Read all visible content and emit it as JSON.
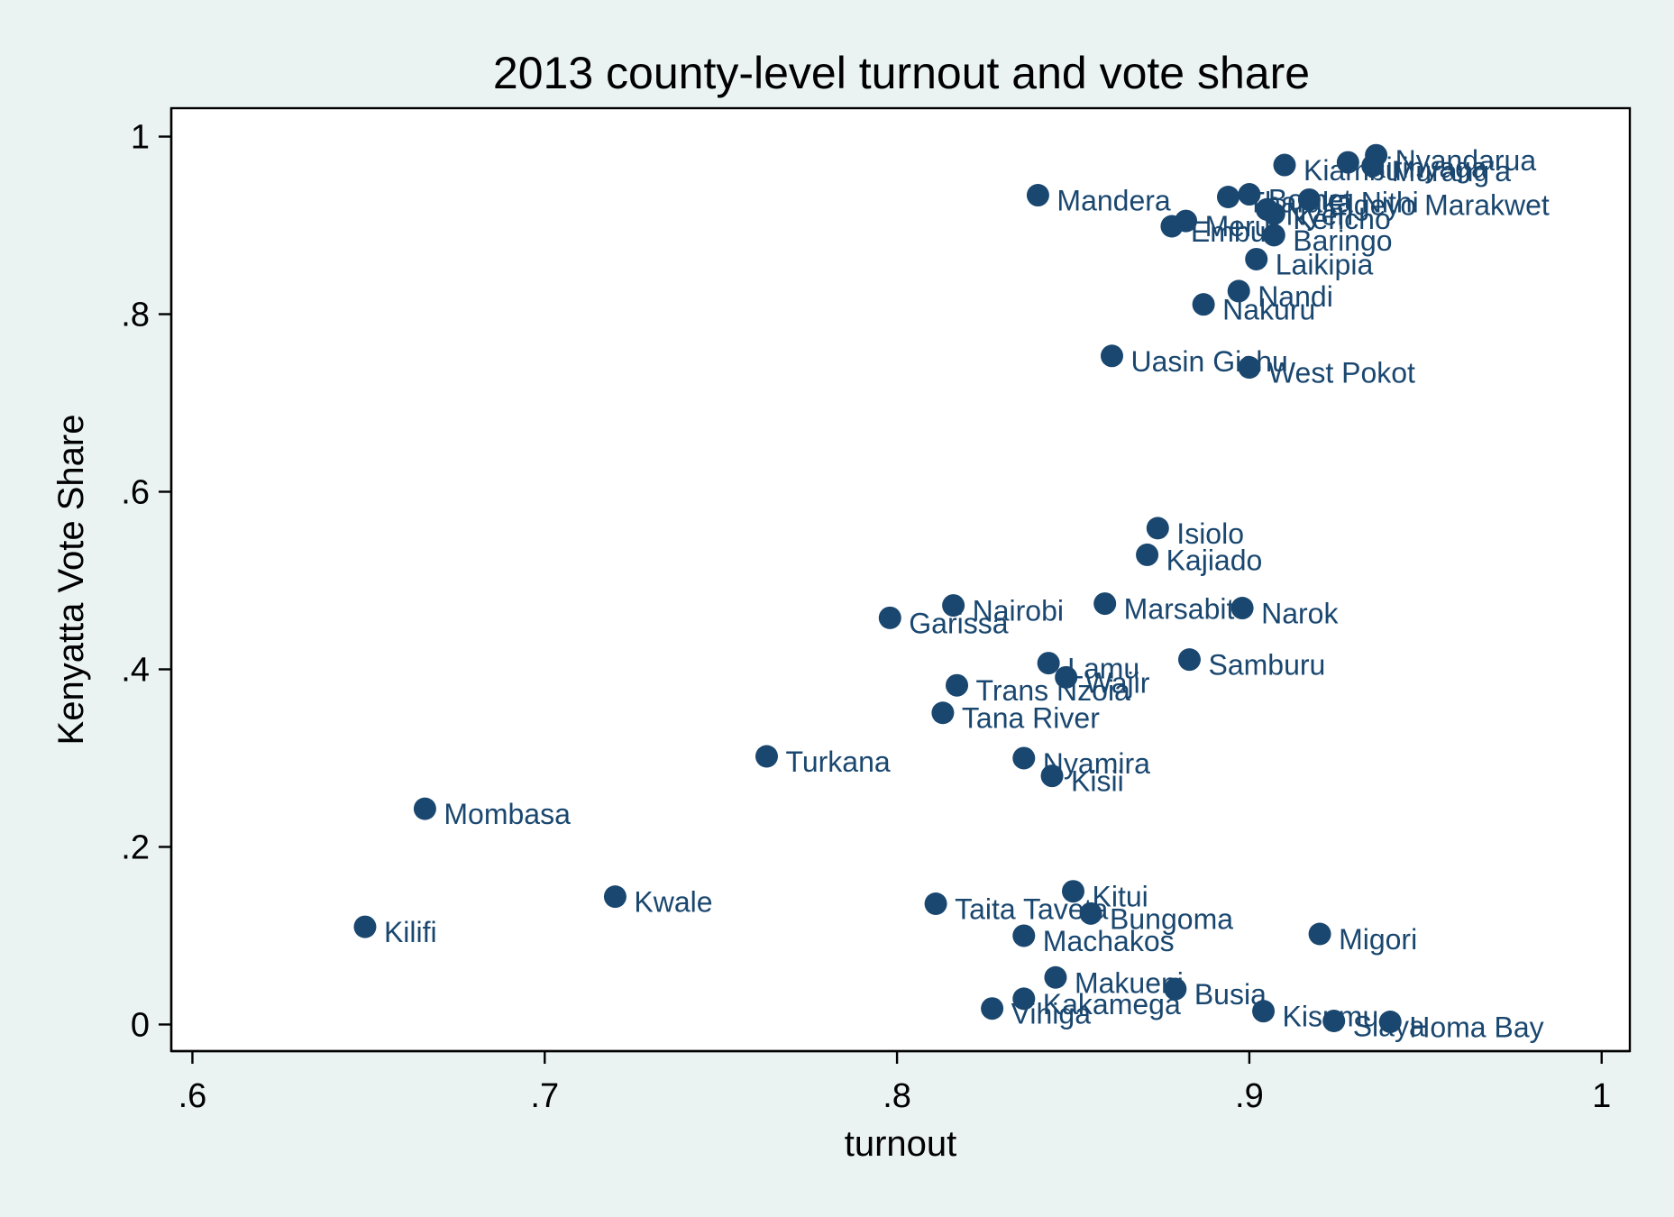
{
  "chart_data": {
    "type": "scatter",
    "title": "2013 county-level turnout and vote share",
    "xlabel": "turnout",
    "ylabel": "Kenyatta Vote Share",
    "xlim": [
      0.594,
      1.008
    ],
    "ylim": [
      -0.03,
      1.032
    ],
    "x_ticks": [
      0.6,
      0.7,
      0.8,
      0.9,
      1.0
    ],
    "x_tick_labels": [
      ".6",
      ".7",
      ".8",
      ".9",
      "1"
    ],
    "y_ticks": [
      0,
      0.2,
      0.4,
      0.6,
      0.8,
      1.0
    ],
    "y_tick_labels": [
      "0",
      ".2",
      ".4",
      ".6",
      ".8",
      "1"
    ],
    "grid": false,
    "marker_color": "#1a476f",
    "points": [
      {
        "label": "Nyandarua",
        "x": 0.936,
        "y": 0.979
      },
      {
        "label": "Kirinyaga",
        "x": 0.928,
        "y": 0.971
      },
      {
        "label": "Murang'a",
        "x": 0.935,
        "y": 0.967
      },
      {
        "label": "Kiambu",
        "x": 0.91,
        "y": 0.968
      },
      {
        "label": "Mandera",
        "x": 0.84,
        "y": 0.934
      },
      {
        "label": "Tharaka Nithi",
        "x": 0.894,
        "y": 0.932
      },
      {
        "label": "Bomet",
        "x": 0.9,
        "y": 0.935
      },
      {
        "label": "Elgeyo Marakwet",
        "x": 0.917,
        "y": 0.929
      },
      {
        "label": "Nyeri",
        "x": 0.905,
        "y": 0.918
      },
      {
        "label": "Kericho",
        "x": 0.907,
        "y": 0.913
      },
      {
        "label": "Meru",
        "x": 0.882,
        "y": 0.905
      },
      {
        "label": "Embu",
        "x": 0.878,
        "y": 0.899
      },
      {
        "label": "Baringo",
        "x": 0.907,
        "y": 0.889
      },
      {
        "label": "Laikipia",
        "x": 0.902,
        "y": 0.862
      },
      {
        "label": "Nandi",
        "x": 0.897,
        "y": 0.826
      },
      {
        "label": "Nakuru",
        "x": 0.887,
        "y": 0.811
      },
      {
        "label": "Uasin Gishu",
        "x": 0.861,
        "y": 0.753
      },
      {
        "label": "West Pokot",
        "x": 0.9,
        "y": 0.74
      },
      {
        "label": "Isiolo",
        "x": 0.874,
        "y": 0.559
      },
      {
        "label": "Kajiado",
        "x": 0.871,
        "y": 0.529
      },
      {
        "label": "Nairobi",
        "x": 0.816,
        "y": 0.472
      },
      {
        "label": "Marsabit",
        "x": 0.859,
        "y": 0.474
      },
      {
        "label": "Narok",
        "x": 0.898,
        "y": 0.469
      },
      {
        "label": "Garissa",
        "x": 0.798,
        "y": 0.458
      },
      {
        "label": "Samburu",
        "x": 0.883,
        "y": 0.411
      },
      {
        "label": "Lamu",
        "x": 0.843,
        "y": 0.407
      },
      {
        "label": "Wajir",
        "x": 0.848,
        "y": 0.391
      },
      {
        "label": "Trans Nzoia",
        "x": 0.817,
        "y": 0.382
      },
      {
        "label": "Tana River",
        "x": 0.813,
        "y": 0.351
      },
      {
        "label": "Turkana",
        "x": 0.763,
        "y": 0.302
      },
      {
        "label": "Nyamira",
        "x": 0.836,
        "y": 0.3
      },
      {
        "label": "Kisii",
        "x": 0.844,
        "y": 0.28
      },
      {
        "label": "Mombasa",
        "x": 0.666,
        "y": 0.243
      },
      {
        "label": "Kwale",
        "x": 0.72,
        "y": 0.144
      },
      {
        "label": "Kitui",
        "x": 0.85,
        "y": 0.15
      },
      {
        "label": "Taita Taveta",
        "x": 0.811,
        "y": 0.136
      },
      {
        "label": "Bungoma",
        "x": 0.855,
        "y": 0.125
      },
      {
        "label": "Kilifi",
        "x": 0.649,
        "y": 0.11
      },
      {
        "label": "Machakos",
        "x": 0.836,
        "y": 0.1
      },
      {
        "label": "Migori",
        "x": 0.92,
        "y": 0.102
      },
      {
        "label": "Makueni",
        "x": 0.845,
        "y": 0.053
      },
      {
        "label": "Busia",
        "x": 0.879,
        "y": 0.04
      },
      {
        "label": "Kakamega",
        "x": 0.836,
        "y": 0.029
      },
      {
        "label": "Vihiga",
        "x": 0.827,
        "y": 0.018
      },
      {
        "label": "Kisumu",
        "x": 0.904,
        "y": 0.015
      },
      {
        "label": "Siaya",
        "x": 0.924,
        "y": 0.004
      },
      {
        "label": "Homa Bay",
        "x": 0.94,
        "y": 0.003
      }
    ]
  }
}
